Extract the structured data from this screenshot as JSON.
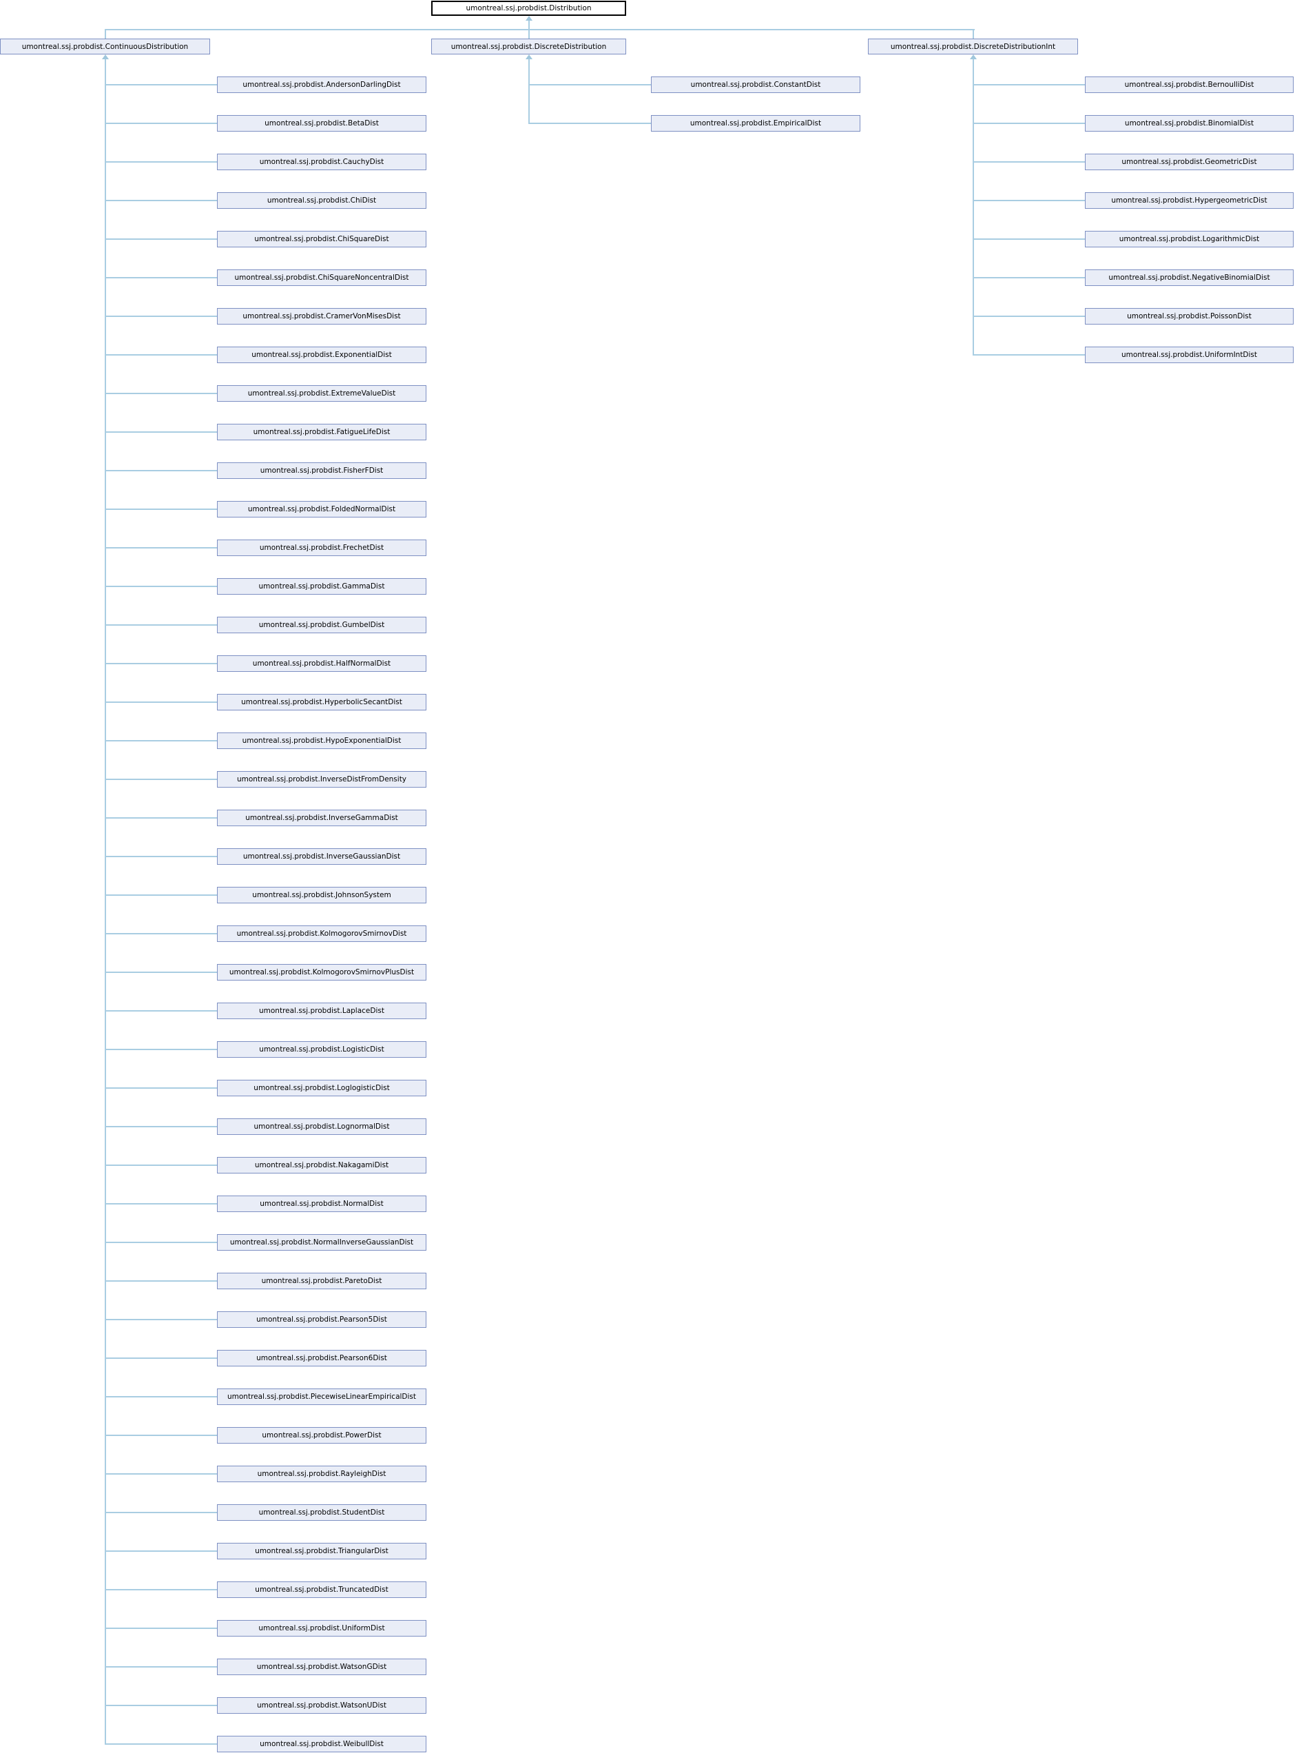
{
  "diagram": {
    "root": {
      "label": "umontreal.ssj.probdist.Distribution"
    },
    "columns": [
      {
        "parent": "umontreal.ssj.probdist.ContinuousDistribution",
        "children": [
          {
            "label": "umontreal.ssj.probdist.AndersonDarlingDist",
            "has_subclasses": true
          },
          {
            "label": "umontreal.ssj.probdist.BetaDist",
            "has_subclasses": true
          },
          {
            "label": "umontreal.ssj.probdist.CauchyDist",
            "has_subclasses": false
          },
          {
            "label": "umontreal.ssj.probdist.ChiDist",
            "has_subclasses": false
          },
          {
            "label": "umontreal.ssj.probdist.ChiSquareDist",
            "has_subclasses": true
          },
          {
            "label": "umontreal.ssj.probdist.ChiSquareNoncentralDist",
            "has_subclasses": false
          },
          {
            "label": "umontreal.ssj.probdist.CramerVonMisesDist",
            "has_subclasses": false
          },
          {
            "label": "umontreal.ssj.probdist.ExponentialDist",
            "has_subclasses": true
          },
          {
            "label": "umontreal.ssj.probdist.ExtremeValueDist",
            "has_subclasses": false
          },
          {
            "label": "umontreal.ssj.probdist.FatigueLifeDist",
            "has_subclasses": false
          },
          {
            "label": "umontreal.ssj.probdist.FisherFDist",
            "has_subclasses": false
          },
          {
            "label": "umontreal.ssj.probdist.FoldedNormalDist",
            "has_subclasses": false
          },
          {
            "label": "umontreal.ssj.probdist.FrechetDist",
            "has_subclasses": false
          },
          {
            "label": "umontreal.ssj.probdist.GammaDist",
            "has_subclasses": true
          },
          {
            "label": "umontreal.ssj.probdist.GumbelDist",
            "has_subclasses": false
          },
          {
            "label": "umontreal.ssj.probdist.HalfNormalDist",
            "has_subclasses": false
          },
          {
            "label": "umontreal.ssj.probdist.HyperbolicSecantDist",
            "has_subclasses": false
          },
          {
            "label": "umontreal.ssj.probdist.HypoExponentialDist",
            "has_subclasses": true
          },
          {
            "label": "umontreal.ssj.probdist.InverseDistFromDensity",
            "has_subclasses": false
          },
          {
            "label": "umontreal.ssj.probdist.InverseGammaDist",
            "has_subclasses": false
          },
          {
            "label": "umontreal.ssj.probdist.InverseGaussianDist",
            "has_subclasses": false
          },
          {
            "label": "umontreal.ssj.probdist.JohnsonSystem",
            "has_subclasses": true
          },
          {
            "label": "umontreal.ssj.probdist.KolmogorovSmirnovDist",
            "has_subclasses": true
          },
          {
            "label": "umontreal.ssj.probdist.KolmogorovSmirnovPlusDist",
            "has_subclasses": false
          },
          {
            "label": "umontreal.ssj.probdist.LaplaceDist",
            "has_subclasses": false
          },
          {
            "label": "umontreal.ssj.probdist.LogisticDist",
            "has_subclasses": false
          },
          {
            "label": "umontreal.ssj.probdist.LoglogisticDist",
            "has_subclasses": false
          },
          {
            "label": "umontreal.ssj.probdist.LognormalDist",
            "has_subclasses": true
          },
          {
            "label": "umontreal.ssj.probdist.NakagamiDist",
            "has_subclasses": false
          },
          {
            "label": "umontreal.ssj.probdist.NormalDist",
            "has_subclasses": true
          },
          {
            "label": "umontreal.ssj.probdist.NormalInverseGaussianDist",
            "has_subclasses": false
          },
          {
            "label": "umontreal.ssj.probdist.ParetoDist",
            "has_subclasses": false
          },
          {
            "label": "umontreal.ssj.probdist.Pearson5Dist",
            "has_subclasses": false
          },
          {
            "label": "umontreal.ssj.probdist.Pearson6Dist",
            "has_subclasses": false
          },
          {
            "label": "umontreal.ssj.probdist.PiecewiseLinearEmpiricalDist",
            "has_subclasses": false
          },
          {
            "label": "umontreal.ssj.probdist.PowerDist",
            "has_subclasses": false
          },
          {
            "label": "umontreal.ssj.probdist.RayleighDist",
            "has_subclasses": false
          },
          {
            "label": "umontreal.ssj.probdist.StudentDist",
            "has_subclasses": true
          },
          {
            "label": "umontreal.ssj.probdist.TriangularDist",
            "has_subclasses": false
          },
          {
            "label": "umontreal.ssj.probdist.TruncatedDist",
            "has_subclasses": false
          },
          {
            "label": "umontreal.ssj.probdist.UniformDist",
            "has_subclasses": false
          },
          {
            "label": "umontreal.ssj.probdist.WatsonGDist",
            "has_subclasses": false
          },
          {
            "label": "umontreal.ssj.probdist.WatsonUDist",
            "has_subclasses": false
          },
          {
            "label": "umontreal.ssj.probdist.WeibullDist",
            "has_subclasses": false
          }
        ]
      },
      {
        "parent": "umontreal.ssj.probdist.DiscreteDistribution",
        "children": [
          {
            "label": "umontreal.ssj.probdist.ConstantDist",
            "has_subclasses": false
          },
          {
            "label": "umontreal.ssj.probdist.EmpiricalDist",
            "has_subclasses": false
          }
        ]
      },
      {
        "parent": "umontreal.ssj.probdist.DiscreteDistributionInt",
        "children": [
          {
            "label": "umontreal.ssj.probdist.BernoulliDist",
            "has_subclasses": false
          },
          {
            "label": "umontreal.ssj.probdist.BinomialDist",
            "has_subclasses": false
          },
          {
            "label": "umontreal.ssj.probdist.GeometricDist",
            "has_subclasses": false
          },
          {
            "label": "umontreal.ssj.probdist.HypergeometricDist",
            "has_subclasses": false
          },
          {
            "label": "umontreal.ssj.probdist.LogarithmicDist",
            "has_subclasses": false
          },
          {
            "label": "umontreal.ssj.probdist.NegativeBinomialDist",
            "has_subclasses": true
          },
          {
            "label": "umontreal.ssj.probdist.PoissonDist",
            "has_subclasses": false
          },
          {
            "label": "umontreal.ssj.probdist.UniformIntDist",
            "has_subclasses": false
          }
        ]
      }
    ],
    "colors": {
      "box_fill": "#e9edf7",
      "box_border": "#7e90c3",
      "root_fill": "#ffffff",
      "root_border": "#000000",
      "line": "#a9cde2",
      "arrow": "#9fc6dc",
      "text": "#000000"
    }
  }
}
